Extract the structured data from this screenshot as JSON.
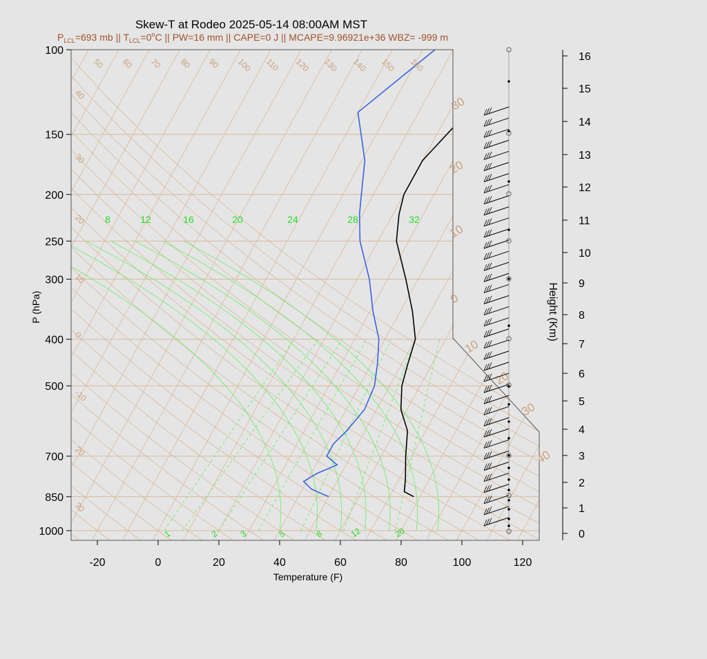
{
  "title": "Skew-T at Rodeo 2025-05-14 08:00AM MST",
  "subtitle": {
    "p_lcl": "P",
    "p_lcl_sub": "LCL",
    "p_lcl_val": "=693 mb || T",
    "t_lcl_sub": "LCL",
    "t_lcl_val": "=0",
    "deg": "o",
    "rest": "C || PW=16 mm || CAPE=0 J || MCAPE=9.96921e+36 WBZ= -999 m"
  },
  "colors": {
    "background": "#e5e5e5",
    "temperature": "#000000",
    "dewpoint": "#3a62e0",
    "isotherm": "#d9b99a",
    "dry_adiabat": "#d9b99a",
    "mixing_ratio": "#66ee66",
    "subtitle": "#a0522d",
    "label_tan": "#c8a07a"
  },
  "chart_data": {
    "type": "line",
    "chart_kind": "skew-t log-p",
    "xlabel": "Temperature (F)",
    "ylabel": "P (hPa)",
    "y2label": "Height (Km)",
    "x_ticks": [
      -20,
      0,
      20,
      40,
      60,
      80,
      100,
      120
    ],
    "p_ticks": [
      100,
      150,
      200,
      250,
      300,
      400,
      500,
      700,
      850,
      1000
    ],
    "height_ticks": [
      0,
      1,
      2,
      3,
      4,
      5,
      6,
      7,
      8,
      9,
      10,
      11,
      12,
      13,
      14,
      15,
      16
    ],
    "isotherm_labels_right": [
      "30",
      "20",
      "10",
      "0",
      "10",
      "20",
      "30",
      "40"
    ],
    "adiabat_labels_left": [
      "40",
      "30",
      "20",
      "10",
      "0",
      "-10",
      "20",
      "30"
    ],
    "adiabat_labels_top": [
      "50",
      "60",
      "70",
      "80",
      "90",
      "100",
      "110",
      "120",
      "130",
      "140",
      "150",
      "160"
    ],
    "mixing_ratio_top_labels": [
      "8",
      "12",
      "16",
      "20",
      "24",
      "28",
      "32"
    ],
    "mixing_ratio_bottom_labels": [
      "1",
      "2",
      "3",
      "5",
      "8",
      "12",
      "20"
    ],
    "series": [
      {
        "name": "Temperature",
        "points": [
          {
            "p": 850,
            "t": 78
          },
          {
            "p": 830,
            "t": 74
          },
          {
            "p": 780,
            "t": 72
          },
          {
            "p": 700,
            "t": 68
          },
          {
            "p": 620,
            "t": 64
          },
          {
            "p": 560,
            "t": 58
          },
          {
            "p": 500,
            "t": 54
          },
          {
            "p": 450,
            "t": 52
          },
          {
            "p": 400,
            "t": 50
          },
          {
            "p": 350,
            "t": 44
          },
          {
            "p": 300,
            "t": 36
          },
          {
            "p": 250,
            "t": 26
          },
          {
            "p": 220,
            "t": 22
          },
          {
            "p": 200,
            "t": 20
          },
          {
            "p": 170,
            "t": 20
          },
          {
            "p": 135,
            "t": 26
          },
          {
            "p": 100,
            "t": 41
          }
        ]
      },
      {
        "name": "Dewpoint",
        "points": [
          {
            "p": 850,
            "t": 50
          },
          {
            "p": 820,
            "t": 43
          },
          {
            "p": 790,
            "t": 39
          },
          {
            "p": 760,
            "t": 42
          },
          {
            "p": 730,
            "t": 47
          },
          {
            "p": 700,
            "t": 42
          },
          {
            "p": 660,
            "t": 42
          },
          {
            "p": 620,
            "t": 44
          },
          {
            "p": 560,
            "t": 46
          },
          {
            "p": 500,
            "t": 45
          },
          {
            "p": 450,
            "t": 42
          },
          {
            "p": 400,
            "t": 38
          },
          {
            "p": 350,
            "t": 31
          },
          {
            "p": 300,
            "t": 24
          },
          {
            "p": 250,
            "t": 14
          },
          {
            "p": 220,
            "t": 9
          },
          {
            "p": 200,
            "t": 6
          },
          {
            "p": 170,
            "t": 1
          },
          {
            "p": 135,
            "t": -10
          },
          {
            "p": 100,
            "t": 4
          }
        ]
      }
    ],
    "wind_barb_count": 38
  }
}
